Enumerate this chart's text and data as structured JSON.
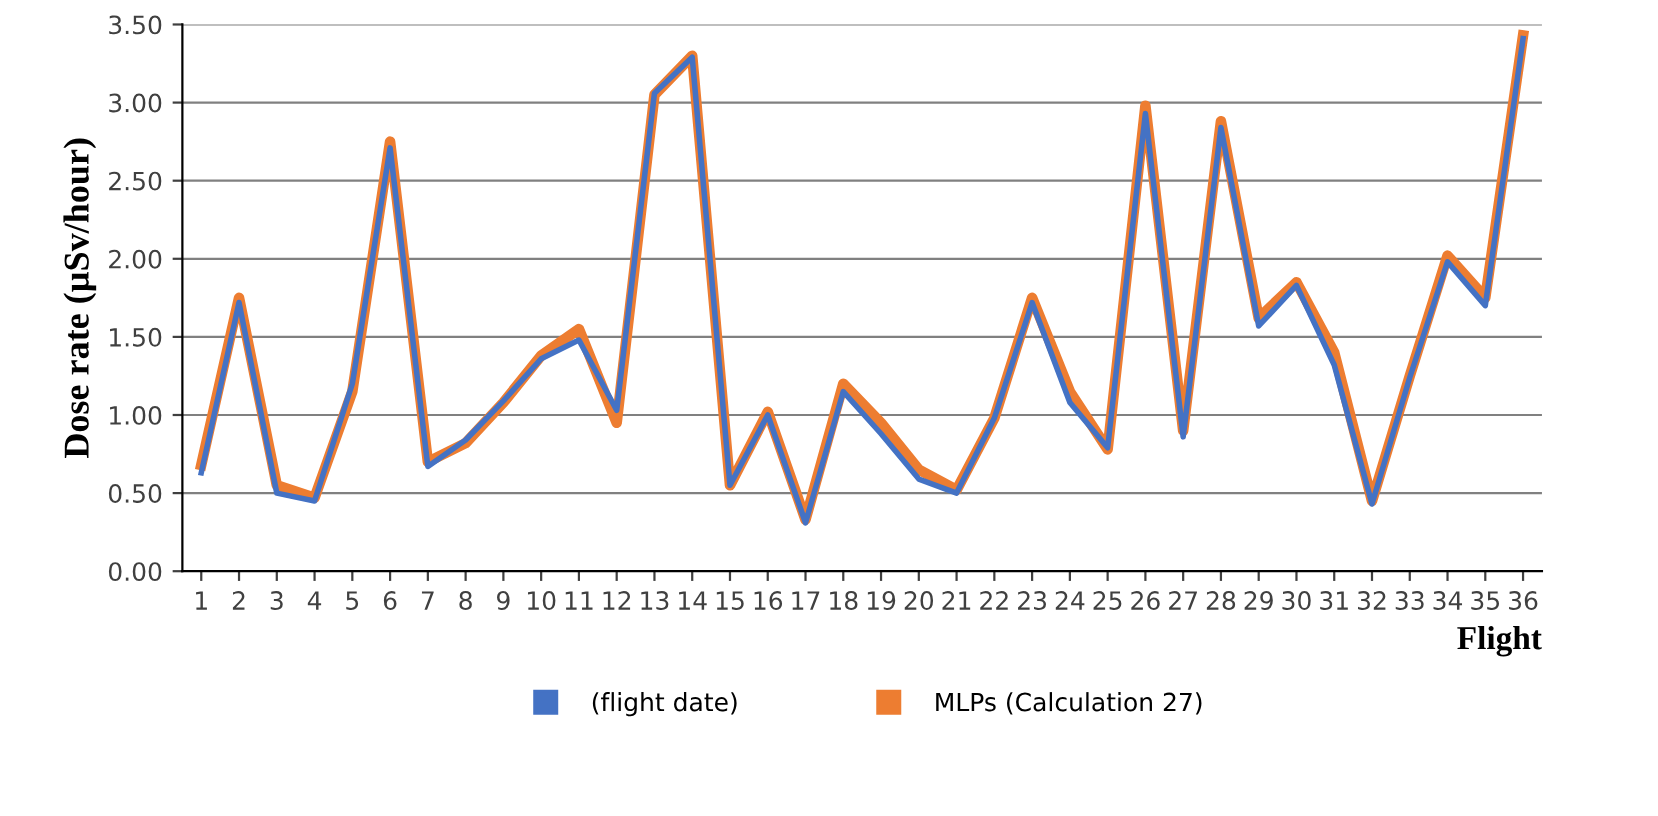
{
  "chart_data": {
    "type": "line",
    "xlabel": "Flight",
    "ylabel": "Dose rate (µSv/hour)",
    "categories": [
      "1",
      "2",
      "3",
      "4",
      "5",
      "6",
      "7",
      "8",
      "9",
      "10",
      "11",
      "12",
      "13",
      "14",
      "15",
      "16",
      "17",
      "18",
      "19",
      "20",
      "21",
      "22",
      "23",
      "24",
      "25",
      "26",
      "27",
      "28",
      "29",
      "30",
      "31",
      "32",
      "33",
      "34",
      "35",
      "36"
    ],
    "series": [
      {
        "name": "(flight date)",
        "color": "#4472c4",
        "values": [
          0.63,
          1.72,
          0.5,
          0.45,
          1.2,
          2.71,
          0.67,
          0.84,
          1.09,
          1.36,
          1.48,
          1.03,
          3.06,
          3.29,
          0.55,
          1.0,
          0.31,
          1.15,
          0.88,
          0.59,
          0.5,
          0.98,
          1.72,
          1.08,
          0.79,
          2.93,
          0.86,
          2.84,
          1.57,
          1.83,
          1.32,
          0.43,
          1.24,
          1.98,
          1.7,
          3.41
        ]
      },
      {
        "name": "MLPs (Calculation 27)",
        "color": "#ed7d31",
        "values": [
          0.68,
          1.75,
          0.55,
          0.47,
          1.15,
          2.75,
          0.7,
          0.82,
          1.08,
          1.38,
          1.55,
          0.95,
          3.05,
          3.3,
          0.55,
          1.02,
          0.33,
          1.2,
          0.95,
          0.65,
          0.52,
          0.98,
          1.75,
          1.15,
          0.78,
          2.98,
          0.9,
          2.88,
          1.62,
          1.85,
          1.4,
          0.45,
          1.25,
          2.02,
          1.75,
          3.43
        ]
      }
    ],
    "ylim": [
      0,
      3.5
    ],
    "yticks": [
      {
        "value": 0,
        "label": "0.00"
      },
      {
        "value": 0.5,
        "label": "0.50"
      },
      {
        "value": 1,
        "label": "1.00"
      },
      {
        "value": 1.5,
        "label": "1.50"
      },
      {
        "value": 2,
        "label": "2.00"
      },
      {
        "value": 2.5,
        "label": "2.50"
      },
      {
        "value": 3,
        "label": "3.00"
      },
      {
        "value": 3.5,
        "label": "3.50"
      }
    ],
    "grid": "y",
    "legend": "bottom",
    "marker": "none",
    "line_style": "solid"
  }
}
